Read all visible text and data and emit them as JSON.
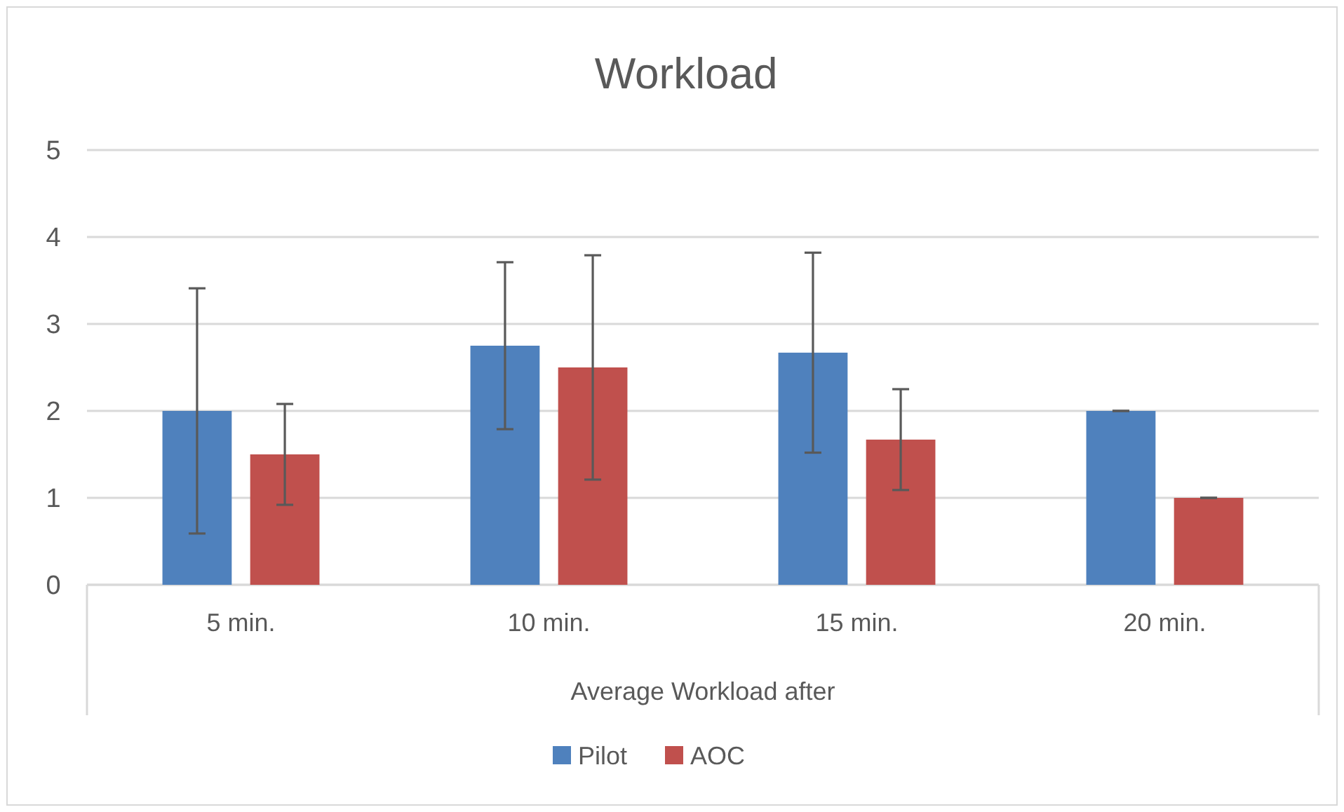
{
  "chart_data": {
    "type": "bar",
    "title": "Workload",
    "xlabel": "Average Workload after",
    "categories": [
      "5 min.",
      "10 min.",
      "15 min.",
      "20 min."
    ],
    "series": [
      {
        "name": "Pilot",
        "color": "#4f81bd",
        "values": [
          2,
          2.75,
          2.67,
          2
        ],
        "errors": [
          1.41,
          0.96,
          1.15,
          0
        ]
      },
      {
        "name": "AOC",
        "color": "#c0504d",
        "values": [
          1.5,
          2.5,
          1.67,
          1
        ],
        "errors": [
          0.58,
          1.29,
          0.58,
          0
        ]
      }
    ],
    "ylim": [
      0,
      5
    ],
    "yticks": [
      0,
      1,
      2,
      3,
      4,
      5
    ],
    "grid": "y",
    "legend": "bottom"
  }
}
